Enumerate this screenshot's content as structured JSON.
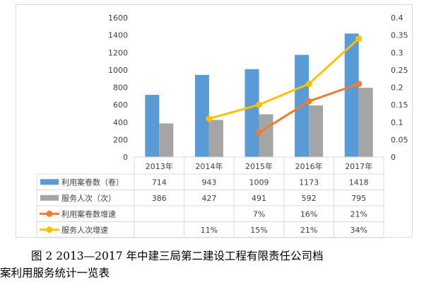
{
  "chart_data": {
    "type": "bar+line",
    "categories": [
      "2013年",
      "2014年",
      "2015年",
      "2016年",
      "2017年"
    ],
    "bar_series": [
      {
        "name": "利用案卷数（卷）",
        "color": "#5b9bd5",
        "values": [
          714,
          943,
          1009,
          1173,
          1418
        ],
        "labels": [
          "714",
          "943",
          "1009",
          "1173",
          "1418"
        ]
      },
      {
        "name": "服务人次（次）",
        "color": "#a5a5a5",
        "values": [
          386,
          427,
          491,
          592,
          795
        ],
        "labels": [
          "386",
          "427",
          "491",
          "592",
          "795"
        ]
      }
    ],
    "line_series": [
      {
        "name": "利用案卷数增速",
        "color": "#ed7d31",
        "values": [
          null,
          null,
          0.07,
          0.16,
          0.21
        ],
        "labels": [
          "",
          "",
          "7%",
          "16%",
          "21%"
        ]
      },
      {
        "name": "服务人次增速",
        "color": "#ffc000",
        "values": [
          null,
          0.11,
          0.15,
          0.21,
          0.34
        ],
        "labels": [
          "",
          "11%",
          "15%",
          "21%",
          "34%"
        ]
      }
    ],
    "y_left": {
      "min": 0,
      "max": 1600,
      "step": 200,
      "ticks": [
        "0",
        "200",
        "400",
        "600",
        "800",
        "1000",
        "1200",
        "1400",
        "1600"
      ]
    },
    "y_right": {
      "min": 0,
      "max": 0.4,
      "step": 0.05,
      "ticks": [
        "0",
        "0.05",
        "0.1",
        "0.15",
        "0.2",
        "0.25",
        "0.3",
        "0.35",
        "0.4"
      ]
    },
    "legend": "data-table-below",
    "grid": false
  },
  "caption": {
    "line1": "图 2 2013—2017 年中建三局第二建设工程有限责任公司档",
    "line2": "案利用服务统计一览表"
  }
}
